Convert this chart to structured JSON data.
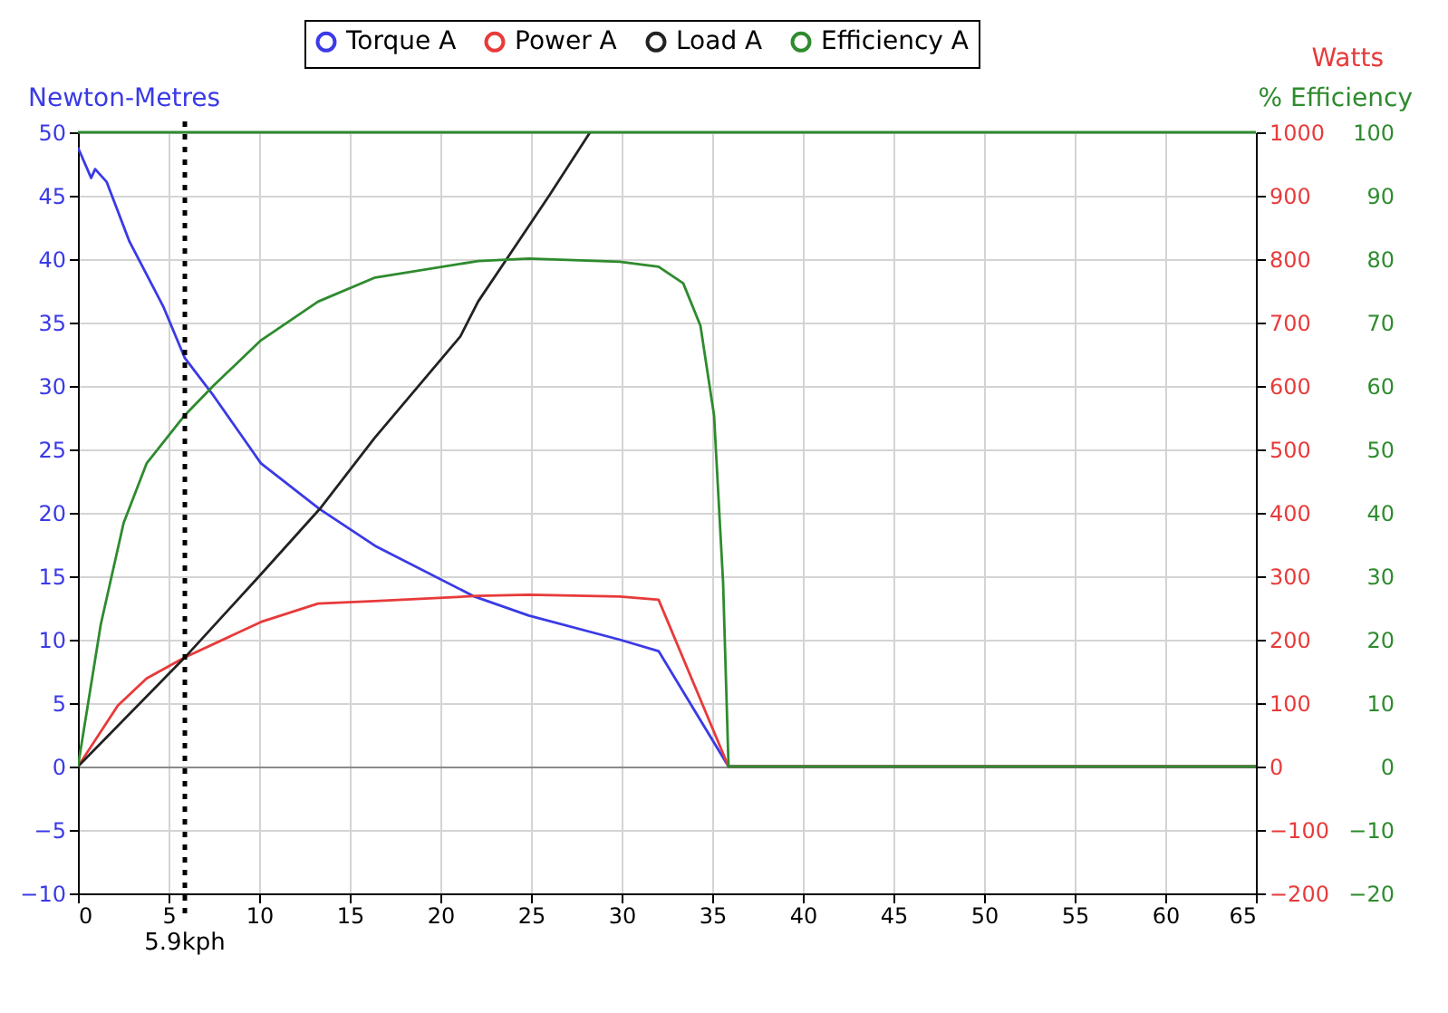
{
  "chart_data": {
    "type": "line",
    "legend": "top",
    "grid": true,
    "xlim": [
      0,
      65
    ],
    "xticks": [
      0,
      5,
      10,
      15,
      20,
      25,
      30,
      35,
      40,
      45,
      50,
      55,
      60,
      65
    ],
    "ylim": [
      -10,
      50
    ],
    "yticks": [
      -10,
      -5,
      0,
      5,
      10,
      15,
      20,
      25,
      30,
      35,
      40,
      45,
      50
    ],
    "ylabel": "Newton-Metres",
    "y2lim": [
      -200,
      1000
    ],
    "y2ticks": [
      -200,
      -100,
      0,
      100,
      200,
      300,
      400,
      500,
      600,
      700,
      800,
      900,
      1000
    ],
    "y2label": "Watts",
    "y3lim": [
      -20,
      100
    ],
    "y3ticks": [
      -20,
      -10,
      0,
      10,
      20,
      30,
      40,
      50,
      60,
      70,
      80,
      90,
      100
    ],
    "y3label": "% Efficiency",
    "ref_lines": [
      {
        "axis": "x",
        "value": 5.9,
        "label": "5.9kph",
        "color": "#000000",
        "line_style": "dotted"
      },
      {
        "axis": "y3",
        "value": 100,
        "label": null,
        "color": "#2e8b2e",
        "line_style": "solid"
      }
    ],
    "series": [
      {
        "name": "Torque A",
        "color": "#3a3ae6",
        "axis": "y",
        "x": [
          0,
          0.73,
          0.95,
          1.58,
          2.84,
          4.73,
          5.9,
          7.5,
          10.1,
          13.34,
          16.4,
          21.88,
          24.88,
          29.9,
          32.04,
          35.9,
          65
        ],
        "values": [
          48.8,
          46.4,
          47.1,
          46.1,
          41.4,
          36.2,
          32.2,
          29.2,
          23.9,
          20.3,
          17.4,
          13.4,
          11.9,
          10.0,
          9.1,
          0,
          0
        ]
      },
      {
        "name": "Power A",
        "color": "#e83a3a",
        "axis": "y2",
        "x": [
          0,
          2.2,
          3.79,
          5.9,
          10.1,
          13.25,
          16.37,
          22.08,
          24.88,
          29.9,
          32.04,
          35.9,
          65
        ],
        "values": [
          0,
          96,
          139,
          172,
          228,
          257,
          261,
          269,
          271,
          268,
          263,
          0,
          0
        ]
      },
      {
        "name": "Load A",
        "color": "#222222",
        "axis": "y2",
        "x": [
          0,
          5.9,
          10,
          13.34,
          16.37,
          21.1,
          22.08,
          23.68,
          26,
          28.26
        ],
        "values": [
          0,
          172,
          300,
          406,
          518,
          678,
          733,
          801,
          900,
          1000
        ]
      },
      {
        "name": "Efficiency A",
        "color": "#2e8b2e",
        "axis": "y3",
        "x": [
          0,
          1.26,
          2.52,
          3.79,
          5.9,
          7.5,
          10.1,
          13.25,
          16.4,
          22.08,
          24.88,
          29.9,
          32.04,
          33.4,
          34.35,
          35.1,
          35.6,
          35.9,
          65
        ],
        "values": [
          0,
          22.4,
          38.4,
          47.8,
          55.4,
          60.1,
          67.2,
          73.3,
          77.1,
          79.7,
          80.1,
          79.6,
          78.8,
          76.2,
          69.5,
          55.4,
          29,
          0,
          0
        ]
      }
    ]
  }
}
